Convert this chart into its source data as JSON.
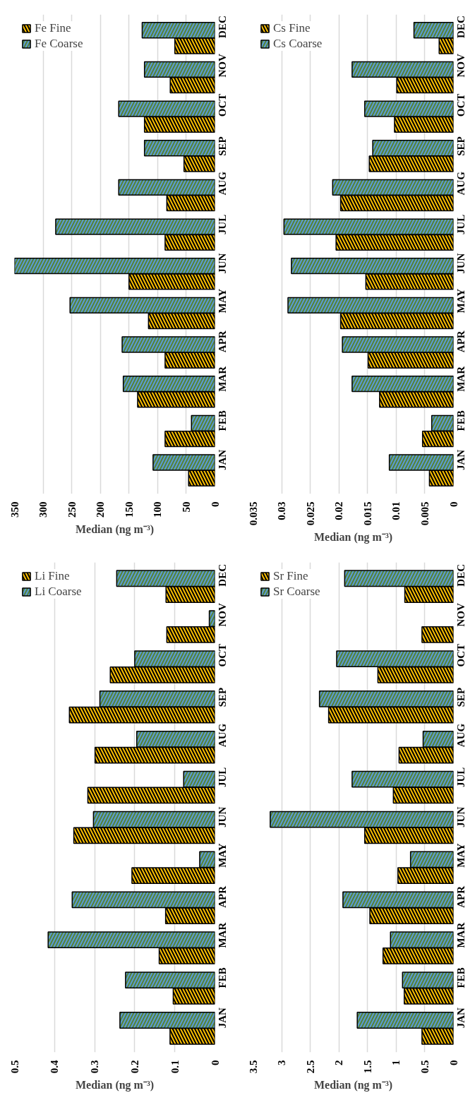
{
  "chart_data": [
    {
      "type": "bar",
      "orientation": "horizontal",
      "xlabel": "Median (ng m⁻³)",
      "categories": [
        "DEC",
        "NOV",
        "OCT",
        "SEP",
        "AUG",
        "JUL",
        "JUN",
        "MAY",
        "APR",
        "MAR",
        "FEB",
        "JAN"
      ],
      "xlim": [
        350,
        0
      ],
      "xticks": [
        0,
        50,
        100,
        150,
        200,
        250,
        300,
        350
      ],
      "grid": "x",
      "legend": "top left",
      "series": [
        {
          "name": "Fe Fine",
          "color": "#ffc000",
          "values": [
            70,
            78,
            123,
            54,
            84,
            87,
            150,
            116,
            87,
            135,
            87,
            46
          ]
        },
        {
          "name": "Fe Coarse",
          "color": "#548235",
          "values": [
            127,
            123,
            168,
            123,
            168,
            278,
            350,
            253,
            162,
            160,
            41,
            108
          ]
        }
      ]
    },
    {
      "type": "bar",
      "orientation": "horizontal",
      "xlabel": "Median (ng m⁻³)",
      "categories": [
        "DEC",
        "NOV",
        "OCT",
        "SEP",
        "AUG",
        "JUL",
        "JUN",
        "MAY",
        "APR",
        "MAR",
        "FEB",
        "JAN"
      ],
      "xlim": [
        0.035,
        0
      ],
      "xticks": [
        0,
        0.005,
        0.01,
        0.015,
        0.02,
        0.025,
        0.03,
        0.035
      ],
      "grid": "x",
      "legend": "top left",
      "series": [
        {
          "name": "Cs Fine",
          "color": "#ffc000",
          "values": [
            0.0025,
            0.0099,
            0.0103,
            0.0147,
            0.0197,
            0.0205,
            0.0153,
            0.0197,
            0.0149,
            0.0129,
            0.0054,
            0.0042
          ]
        },
        {
          "name": "Cs Coarse",
          "color": "#548235",
          "values": [
            0.0069,
            0.0177,
            0.0155,
            0.0141,
            0.0211,
            0.0296,
            0.0283,
            0.0289,
            0.0194,
            0.0177,
            0.0038,
            0.0112
          ]
        }
      ]
    },
    {
      "type": "bar",
      "orientation": "horizontal",
      "xlabel": "Median (ng m⁻³)",
      "categories": [
        "DEC",
        "NOV",
        "OCT",
        "SEP",
        "AUG",
        "JUL",
        "JUN",
        "MAY",
        "APR",
        "MAR",
        "FEB",
        "JAN"
      ],
      "xlim": [
        0.5,
        0
      ],
      "xticks": [
        0,
        0.1,
        0.2,
        0.3,
        0.4,
        0.5
      ],
      "grid": "x",
      "legend": "top left",
      "series": [
        {
          "name": "Li Fine",
          "color": "#ffc000",
          "values": [
            0.122,
            0.12,
            0.261,
            0.363,
            0.299,
            0.317,
            0.352,
            0.207,
            0.123,
            0.139,
            0.104,
            0.112
          ]
        },
        {
          "name": "Li Coarse",
          "color": "#548235",
          "values": [
            0.245,
            0.014,
            0.2,
            0.287,
            0.195,
            0.078,
            0.303,
            0.038,
            0.356,
            0.416,
            0.223,
            0.237
          ]
        }
      ]
    },
    {
      "type": "bar",
      "orientation": "horizontal",
      "xlabel": "Median (ng m⁻³)",
      "categories": [
        "DEC",
        "NOV",
        "OCT",
        "SEP",
        "AUG",
        "JUL",
        "JUN",
        "MAY",
        "APR",
        "MAR",
        "FEB",
        "JAN"
      ],
      "xlim": [
        3.5,
        0
      ],
      "xticks": [
        0,
        0.5,
        1,
        1.5,
        2,
        2.5,
        3,
        3.5
      ],
      "grid": "x",
      "legend": "top left",
      "series": [
        {
          "name": "Sr Fine",
          "color": "#ffc000",
          "values": [
            0.85,
            0.55,
            1.32,
            2.18,
            0.95,
            1.05,
            1.55,
            0.97,
            1.46,
            1.23,
            0.86,
            0.55
          ]
        },
        {
          "name": "Sr Coarse",
          "color": "#548235",
          "values": [
            1.9,
            null,
            2.04,
            2.34,
            0.53,
            1.77,
            3.2,
            0.75,
            1.93,
            1.1,
            0.89,
            1.68
          ]
        }
      ]
    }
  ]
}
